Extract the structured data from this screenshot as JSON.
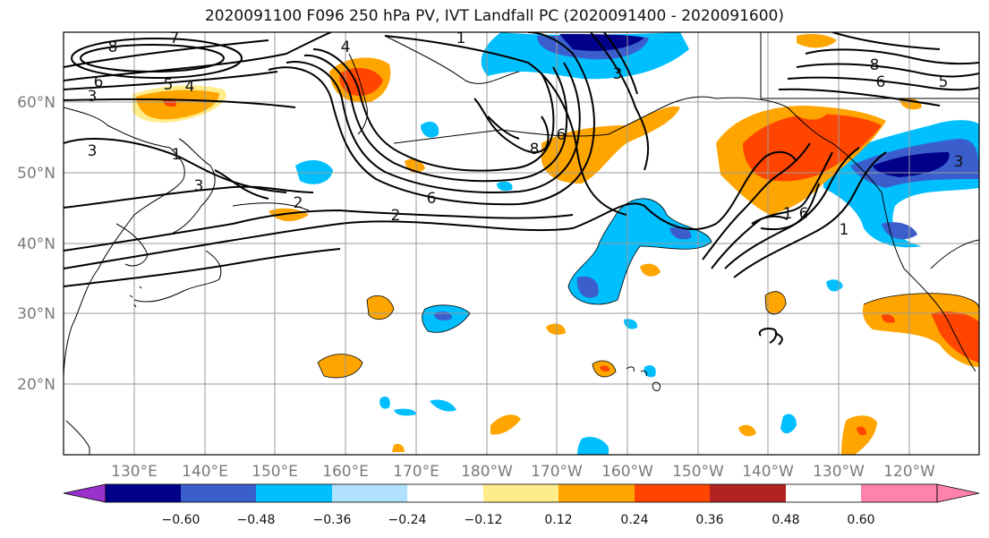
{
  "title": "2020091100 F096 250 hPa PV, IVT Landfall PC (2020091400 - 2020091600)",
  "lat_ticks": [
    "60°N",
    "50°N",
    "40°N",
    "30°N",
    "20°N"
  ],
  "lon_ticks": [
    "130°E",
    "140°E",
    "150°E",
    "160°E",
    "170°E",
    "180°W",
    "170°W",
    "160°W",
    "150°W",
    "140°W",
    "130°W",
    "120°W"
  ],
  "colorbar": {
    "colors": [
      "#9932cc",
      "#00008b",
      "#3a5fcd",
      "#00bfff",
      "#b0e2ff",
      "#ffffff",
      "#ffec8b",
      "#ffa500",
      "#ff4500",
      "#b22222",
      "#ff82ab"
    ],
    "tick_labels": [
      "−0.60",
      "−0.48",
      "−0.36",
      "−0.24",
      "−0.12",
      "0.12",
      "0.24",
      "0.36",
      "0.48",
      "0.60"
    ]
  },
  "contour_labels": [
    "8",
    "7",
    "6",
    "5",
    "4",
    "3",
    "3",
    "1",
    "3",
    "2",
    "4",
    "1",
    "8",
    "6",
    "3",
    "2",
    "6",
    "1",
    "6",
    "1",
    "8",
    "6",
    "5",
    "3"
  ]
}
